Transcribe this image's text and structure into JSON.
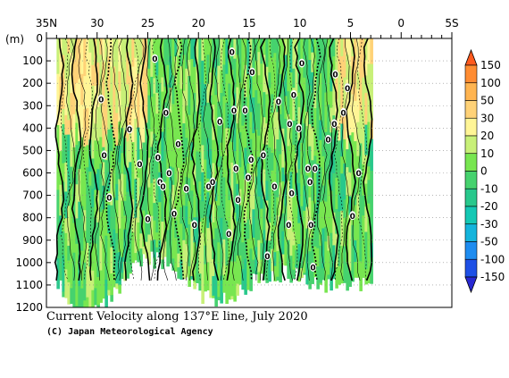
{
  "chart_data": {
    "type": "heatmap",
    "title": "Current Velocity along 137°E line, July 2020",
    "credit": "(C) Japan Meteorological Agency",
    "ylabel": "(m)",
    "x_ticks": [
      {
        "v": 35,
        "label": "35N"
      },
      {
        "v": 30,
        "label": "30"
      },
      {
        "v": 25,
        "label": "25"
      },
      {
        "v": 20,
        "label": "20"
      },
      {
        "v": 15,
        "label": "15"
      },
      {
        "v": 10,
        "label": "10"
      },
      {
        "v": 5,
        "label": "5"
      },
      {
        "v": 0,
        "label": "0"
      },
      {
        "v": -5,
        "label": "5S"
      }
    ],
    "xlim": [
      35,
      -5
    ],
    "y_ticks": [
      0,
      100,
      200,
      300,
      400,
      500,
      600,
      700,
      800,
      900,
      1000,
      1100,
      1200
    ],
    "ylim": [
      0,
      1200
    ],
    "colorbar": {
      "levels": [
        "150",
        "100",
        "50",
        "30",
        "20",
        "10",
        "0",
        "-10",
        "-20",
        "-30",
        "-50",
        "-100",
        "-150"
      ],
      "colors": [
        "#ff5a1e",
        "#ff8c32",
        "#ffb450",
        "#ffd278",
        "#fff596",
        "#c8f078",
        "#78e650",
        "#46d26e",
        "#28c88c",
        "#14c8b4",
        "#14b4dc",
        "#1e8cf0",
        "#1e50e6",
        "#2828d2"
      ]
    },
    "data_extent": {
      "lat_north": 34.0,
      "lat_south": 3.0
    },
    "zero_contour_labels": [
      {
        "lat": 29.6,
        "depth": 270,
        "label": "0"
      },
      {
        "lat": 29.3,
        "depth": 520,
        "label": "0"
      },
      {
        "lat": 28.8,
        "depth": 710,
        "label": "0"
      },
      {
        "lat": 26.8,
        "depth": 405,
        "label": "0"
      },
      {
        "lat": 25.8,
        "depth": 560,
        "label": "0"
      },
      {
        "lat": 25.0,
        "depth": 805,
        "label": "0"
      },
      {
        "lat": 24.3,
        "depth": 90,
        "label": "0"
      },
      {
        "lat": 24.0,
        "depth": 530,
        "label": "0"
      },
      {
        "lat": 23.8,
        "depth": 640,
        "label": "0"
      },
      {
        "lat": 23.5,
        "depth": 660,
        "label": "0"
      },
      {
        "lat": 23.2,
        "depth": 330,
        "label": "0"
      },
      {
        "lat": 22.9,
        "depth": 600,
        "label": "0"
      },
      {
        "lat": 22.4,
        "depth": 780,
        "label": "0"
      },
      {
        "lat": 22.0,
        "depth": 470,
        "label": "0"
      },
      {
        "lat": 21.2,
        "depth": 670,
        "label": "0"
      },
      {
        "lat": 20.4,
        "depth": 830,
        "label": "0"
      },
      {
        "lat": 19.0,
        "depth": 660,
        "label": "0"
      },
      {
        "lat": 18.6,
        "depth": 640,
        "label": "0"
      },
      {
        "lat": 17.9,
        "depth": 370,
        "label": "0"
      },
      {
        "lat": 17.0,
        "depth": 870,
        "label": "0"
      },
      {
        "lat": 16.7,
        "depth": 60,
        "label": "0"
      },
      {
        "lat": 16.5,
        "depth": 320,
        "label": "0"
      },
      {
        "lat": 16.3,
        "depth": 580,
        "label": "0"
      },
      {
        "lat": 16.1,
        "depth": 720,
        "label": "0"
      },
      {
        "lat": 15.4,
        "depth": 320,
        "label": "0"
      },
      {
        "lat": 15.1,
        "depth": 620,
        "label": "0"
      },
      {
        "lat": 14.8,
        "depth": 540,
        "label": "0"
      },
      {
        "lat": 14.7,
        "depth": 150,
        "label": "0"
      },
      {
        "lat": 13.6,
        "depth": 520,
        "label": "0"
      },
      {
        "lat": 13.2,
        "depth": 970,
        "label": "0"
      },
      {
        "lat": 12.5,
        "depth": 660,
        "label": "0"
      },
      {
        "lat": 12.1,
        "depth": 280,
        "label": "0"
      },
      {
        "lat": 11.1,
        "depth": 830,
        "label": "0"
      },
      {
        "lat": 11.0,
        "depth": 380,
        "label": "0"
      },
      {
        "lat": 10.8,
        "depth": 690,
        "label": "0"
      },
      {
        "lat": 10.6,
        "depth": 250,
        "label": "0"
      },
      {
        "lat": 10.1,
        "depth": 400,
        "label": "0"
      },
      {
        "lat": 9.8,
        "depth": 110,
        "label": "0"
      },
      {
        "lat": 9.2,
        "depth": 580,
        "label": "0"
      },
      {
        "lat": 9.0,
        "depth": 640,
        "label": "0"
      },
      {
        "lat": 8.9,
        "depth": 830,
        "label": "0"
      },
      {
        "lat": 8.7,
        "depth": 1020,
        "label": "0"
      },
      {
        "lat": 8.5,
        "depth": 580,
        "label": "0"
      },
      {
        "lat": 7.2,
        "depth": 450,
        "label": "0"
      },
      {
        "lat": 6.6,
        "depth": 380,
        "label": "0"
      },
      {
        "lat": 6.5,
        "depth": 160,
        "label": "0"
      },
      {
        "lat": 5.7,
        "depth": 330,
        "label": "0"
      },
      {
        "lat": 5.3,
        "depth": 220,
        "label": "0"
      },
      {
        "lat": 4.8,
        "depth": 790,
        "label": "0"
      },
      {
        "lat": 4.2,
        "depth": 600,
        "label": "0"
      }
    ]
  }
}
